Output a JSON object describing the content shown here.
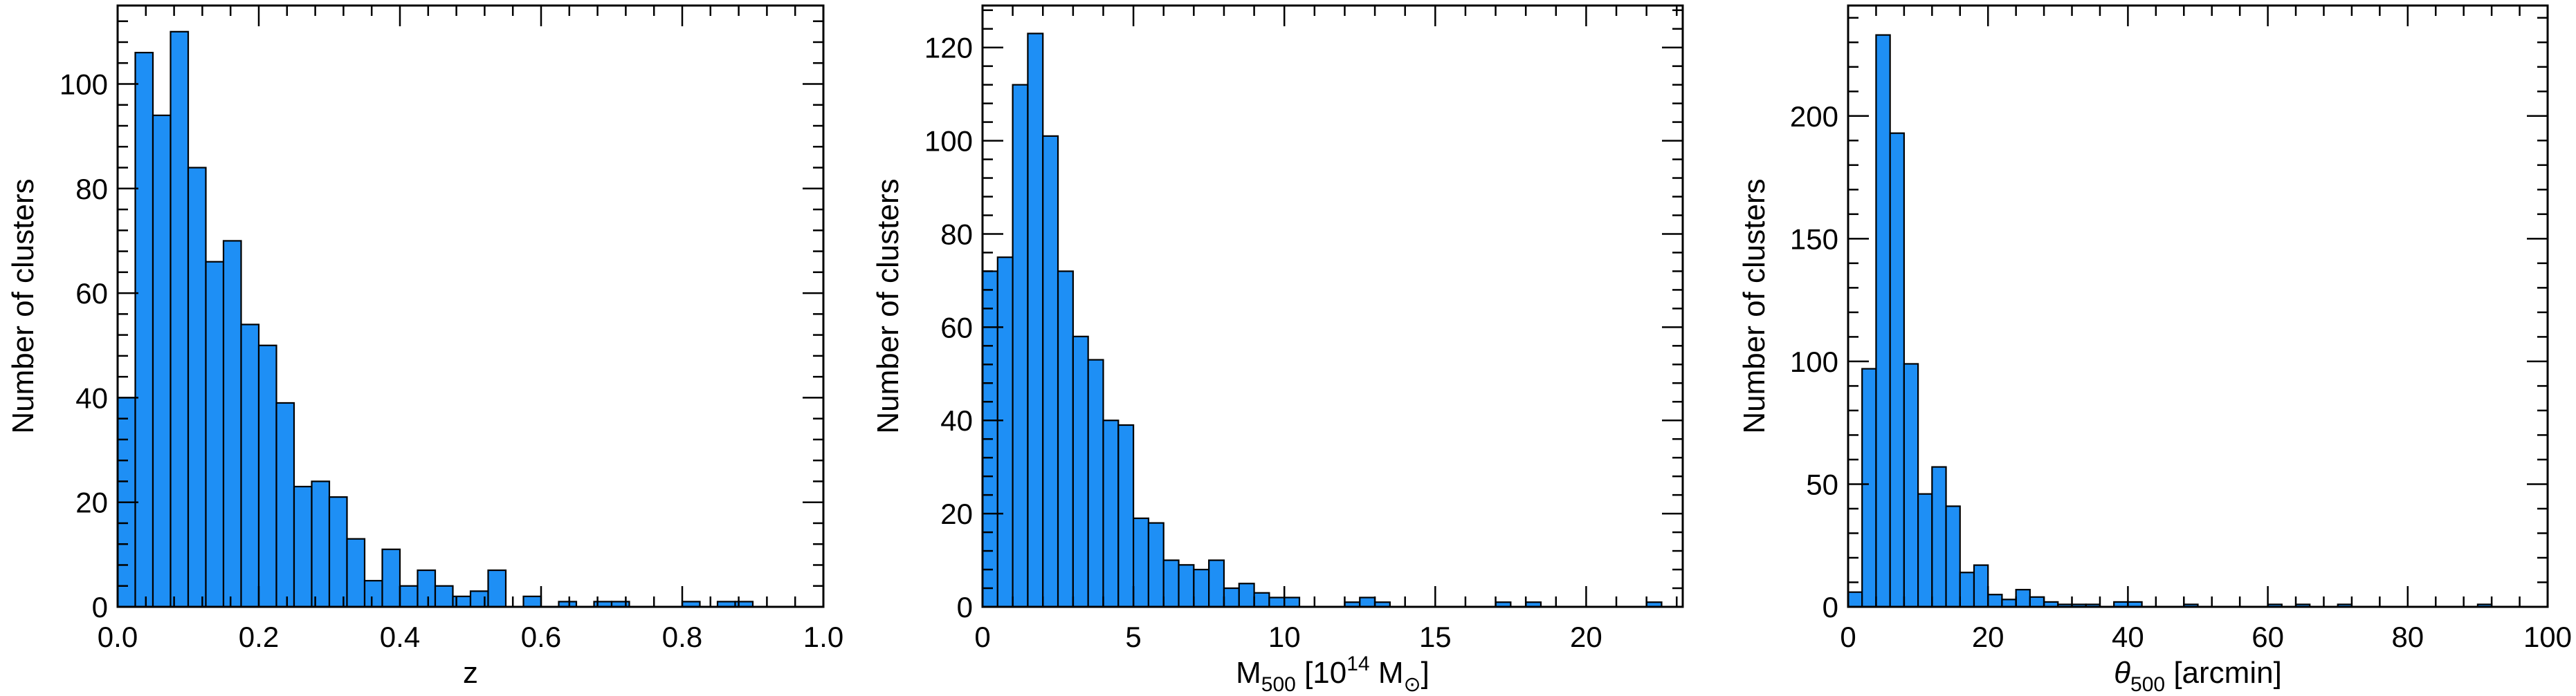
{
  "chart_data": [
    {
      "type": "bar",
      "xlabel": "z",
      "ylabel": "Number of clusters",
      "xlim": [
        0.0,
        1.0
      ],
      "ylim": [
        0,
        115
      ],
      "xticks": [
        "0.0",
        "0.2",
        "0.4",
        "0.6",
        "0.8",
        "1.0"
      ],
      "xtick_values": [
        0.0,
        0.2,
        0.4,
        0.6,
        0.8,
        1.0
      ],
      "yticks": [
        "0",
        "20",
        "40",
        "60",
        "80",
        "100"
      ],
      "ytick_values": [
        0,
        20,
        40,
        60,
        80,
        100
      ],
      "bin_width": 0.025,
      "bin_starts": [
        0.0,
        0.025,
        0.05,
        0.075,
        0.1,
        0.125,
        0.15,
        0.175,
        0.2,
        0.225,
        0.25,
        0.275,
        0.3,
        0.325,
        0.35,
        0.375,
        0.4,
        0.425,
        0.45,
        0.475,
        0.5,
        0.525,
        0.55,
        0.575,
        0.6,
        0.625,
        0.65,
        0.675,
        0.7,
        0.725,
        0.75,
        0.775,
        0.8,
        0.825,
        0.85,
        0.875,
        0.9
      ],
      "values": [
        40,
        106,
        94,
        110,
        84,
        66,
        70,
        54,
        50,
        39,
        23,
        24,
        21,
        13,
        5,
        11,
        4,
        7,
        4,
        2,
        3,
        7,
        0,
        2,
        0,
        1,
        0,
        1,
        1,
        0,
        0,
        0,
        1,
        0,
        1,
        1,
        0
      ],
      "bar_color": "#1E8FF5",
      "grid": false
    },
    {
      "type": "bar",
      "xlabel_main": "M",
      "xlabel_sub": "500",
      "xlabel_mid": " [10",
      "xlabel_sup": "14",
      "xlabel_end": " M",
      "xlabel_sub2": "⊙",
      "xlabel_close": "]",
      "ylabel": "Number of clusters",
      "xlim": [
        0,
        23.2
      ],
      "ylim": [
        0,
        129
      ],
      "xticks": [
        "0",
        "5",
        "10",
        "15",
        "20"
      ],
      "xtick_values": [
        0,
        5,
        10,
        15,
        20
      ],
      "yticks": [
        "0",
        "20",
        "40",
        "60",
        "80",
        "100",
        "120"
      ],
      "ytick_values": [
        0,
        20,
        40,
        60,
        80,
        100,
        120
      ],
      "bin_width": 0.5,
      "bin_starts": [
        0,
        0.5,
        1.0,
        1.5,
        2.0,
        2.5,
        3.0,
        3.5,
        4.0,
        4.5,
        5.0,
        5.5,
        6.0,
        6.5,
        7.0,
        7.5,
        8.0,
        8.5,
        9.0,
        9.5,
        10.0,
        10.5,
        11.0,
        11.5,
        12.0,
        12.5,
        13.0,
        13.5,
        14.0,
        14.5,
        15.0,
        15.5,
        16.0,
        16.5,
        17.0,
        17.5,
        18.0,
        18.5,
        19.0,
        19.5,
        20.0,
        20.5,
        21.0,
        21.5,
        22.0
      ],
      "values": [
        72,
        75,
        112,
        123,
        101,
        72,
        58,
        53,
        40,
        39,
        19,
        18,
        10,
        9,
        8,
        10,
        4,
        5,
        3,
        2,
        2,
        0,
        0,
        0,
        1,
        2,
        1,
        0,
        0,
        0,
        0,
        0,
        0,
        0,
        1,
        0,
        1,
        0,
        0,
        0,
        0,
        0,
        0,
        0,
        1
      ],
      "bar_color": "#1E8FF5",
      "grid": false
    },
    {
      "type": "bar",
      "xlabel_main": "θ",
      "xlabel_sub": "500",
      "xlabel_end": " [arcmin]",
      "ylabel": "Number of clusters",
      "xlim": [
        0,
        100
      ],
      "ylim": [
        0,
        245
      ],
      "xticks": [
        "0",
        "20",
        "40",
        "60",
        "80",
        "100"
      ],
      "xtick_values": [
        0,
        20,
        40,
        60,
        80,
        100
      ],
      "yticks": [
        "0",
        "50",
        "100",
        "150",
        "200"
      ],
      "ytick_values": [
        0,
        50,
        100,
        150,
        200
      ],
      "bin_width": 2,
      "bin_starts": [
        0,
        2,
        4,
        6,
        8,
        10,
        12,
        14,
        16,
        18,
        20,
        22,
        24,
        26,
        28,
        30,
        32,
        34,
        36,
        38,
        40,
        42,
        44,
        46,
        48,
        50,
        52,
        54,
        56,
        58,
        60,
        62,
        64,
        66,
        68,
        70,
        72,
        74,
        76,
        78,
        80,
        82,
        84,
        86,
        88,
        90
      ],
      "values": [
        6,
        97,
        233,
        193,
        99,
        46,
        57,
        41,
        14,
        17,
        5,
        3,
        7,
        4,
        2,
        1,
        1,
        1,
        0,
        2,
        2,
        0,
        0,
        0,
        1,
        0,
        0,
        0,
        0,
        0,
        1,
        0,
        1,
        0,
        0,
        1,
        0,
        0,
        0,
        0,
        0,
        0,
        0,
        0,
        0,
        1
      ],
      "bar_color": "#1E8FF5",
      "grid": false
    }
  ]
}
